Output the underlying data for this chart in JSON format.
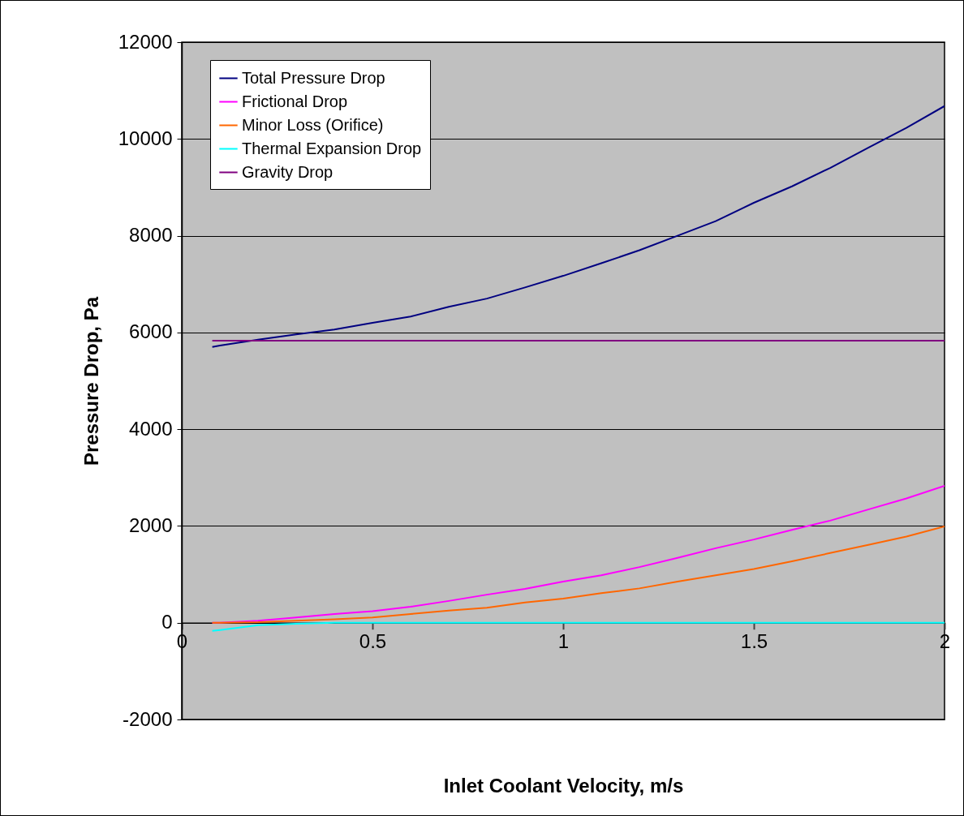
{
  "chart_data": {
    "type": "line",
    "xlabel": "Inlet Coolant Velocity, m/s",
    "ylabel": "Pressure Drop, Pa",
    "x": [
      0.08,
      0.1,
      0.2,
      0.3,
      0.4,
      0.5,
      0.6,
      0.7,
      0.8,
      0.9,
      1.0,
      1.1,
      1.2,
      1.3,
      1.4,
      1.5,
      1.6,
      1.7,
      1.8,
      1.9,
      2.0
    ],
    "series": [
      {
        "name": "Total Pressure Drop",
        "color": "#000080",
        "values": [
          5700,
          5730,
          5850,
          5960,
          6060,
          6200,
          6330,
          6530,
          6700,
          6930,
          7170,
          7430,
          7700,
          8000,
          8300,
          8680,
          9020,
          9400,
          9820,
          10230,
          10680
        ]
      },
      {
        "name": "Frictional Drop",
        "color": "#ff00ff",
        "values": [
          0,
          0,
          40,
          110,
          180,
          240,
          330,
          450,
          580,
          700,
          850,
          980,
          1150,
          1340,
          1540,
          1720,
          1920,
          2110,
          2340,
          2570,
          2830
        ]
      },
      {
        "name": "Minor Loss (Orifice)",
        "color": "#ff6600",
        "values": [
          0,
          0,
          10,
          40,
          70,
          110,
          180,
          250,
          310,
          420,
          500,
          610,
          710,
          850,
          980,
          1110,
          1270,
          1440,
          1610,
          1780,
          1990
        ]
      },
      {
        "name": "Thermal Expansion Drop",
        "color": "#00ffff",
        "values": [
          -170,
          -150,
          -50,
          -20,
          0,
          0,
          0,
          0,
          0,
          0,
          0,
          0,
          0,
          0,
          0,
          0,
          0,
          0,
          0,
          0,
          0
        ]
      },
      {
        "name": "Gravity Drop",
        "color": "#800080",
        "values": [
          5830,
          5830,
          5830,
          5830,
          5830,
          5830,
          5830,
          5830,
          5830,
          5830,
          5830,
          5830,
          5830,
          5830,
          5830,
          5830,
          5830,
          5830,
          5830,
          5830,
          5830
        ]
      }
    ],
    "xlim": [
      0,
      2
    ],
    "xticks": [
      0,
      0.5,
      1,
      1.5,
      2
    ],
    "ylim": [
      -2000,
      12000
    ],
    "yticks": [
      -2000,
      0,
      2000,
      4000,
      6000,
      8000,
      10000,
      12000
    ],
    "grid": "y",
    "legend": "top left",
    "marker": "none",
    "line_style": "solid"
  }
}
